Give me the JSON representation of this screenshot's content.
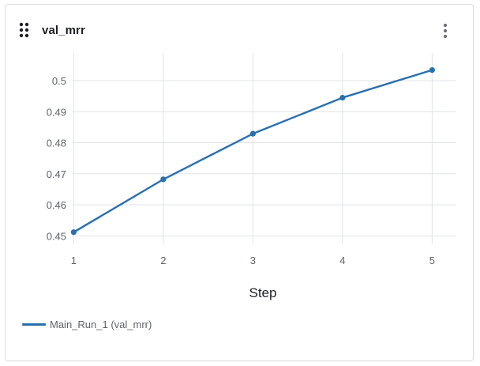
{
  "panel": {
    "title": "val_mrr",
    "drag_icon": "drag-dots-icon",
    "more_icon": "more-vertical-icon"
  },
  "chart_data": {
    "type": "line",
    "title": "val_mrr",
    "xlabel": "Step",
    "ylabel": "",
    "x": [
      1,
      2,
      3,
      4,
      5
    ],
    "xlim": [
      0.988,
      5.27
    ],
    "ylim": [
      0.4473,
      0.5089
    ],
    "xticks": [
      1,
      2,
      3,
      4,
      5
    ],
    "yticks": [
      0.45,
      0.46,
      0.47,
      0.48,
      0.49,
      0.5
    ],
    "ytick_labels": [
      "0.45",
      "0.46",
      "0.47",
      "0.48",
      "0.49",
      "0.5"
    ],
    "grid": true,
    "legend_position": "bottom-left",
    "series": [
      {
        "name": "Main_Run_1 (val_mrr)",
        "color": "#2a6fb0",
        "values": [
          0.4512,
          0.4682,
          0.4829,
          0.4945,
          0.5034
        ]
      }
    ]
  },
  "colors": {
    "grid": "#dfe3e8",
    "series": "#2a6fb0",
    "text": "#5f6368",
    "title": "#1d1f23"
  }
}
